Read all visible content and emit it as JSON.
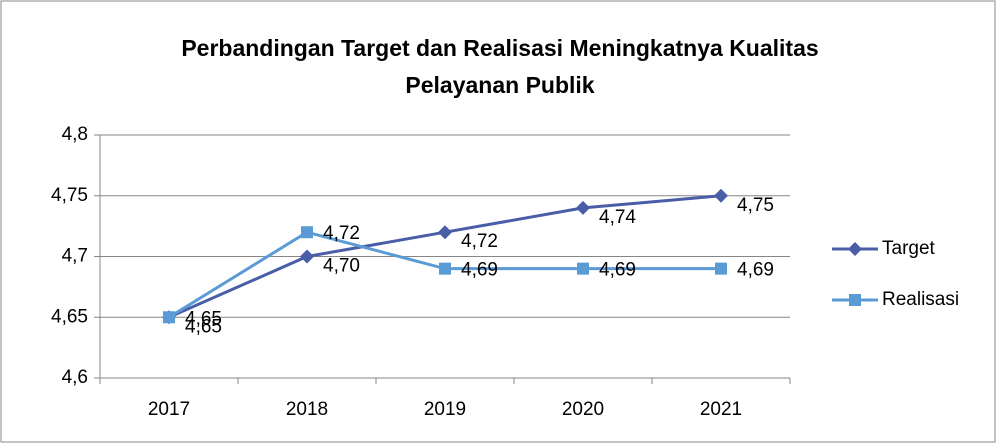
{
  "chart_data": {
    "type": "line",
    "title": [
      "Perbandingan Target dan Realisasi Meningkatnya Kualitas",
      "Pelayanan Publik"
    ],
    "categories": [
      "2017",
      "2018",
      "2019",
      "2020",
      "2021"
    ],
    "series": [
      {
        "name": "Target",
        "color": "#4a5ea8",
        "marker": "diamond",
        "values": [
          4.65,
          4.7,
          4.72,
          4.74,
          4.75
        ],
        "value_labels": [
          "4,65",
          "4,70",
          "4,72",
          "4,74",
          "4,75"
        ]
      },
      {
        "name": "Realisasi",
        "color": "#5b9bd5",
        "marker": "square",
        "values": [
          4.65,
          4.72,
          4.69,
          4.69,
          4.69
        ],
        "value_labels": [
          "4,65",
          "4,72",
          "4,69",
          "4,69",
          "4,69"
        ]
      }
    ],
    "ylim": [
      4.6,
      4.8
    ],
    "yticks": [
      {
        "value": 4.6,
        "label": "4,6"
      },
      {
        "value": 4.65,
        "label": "4,65"
      },
      {
        "value": 4.7,
        "label": "4,7"
      },
      {
        "value": 4.75,
        "label": "4,75"
      },
      {
        "value": 4.8,
        "label": "4,8"
      }
    ],
    "grid": true,
    "legend": "right"
  }
}
